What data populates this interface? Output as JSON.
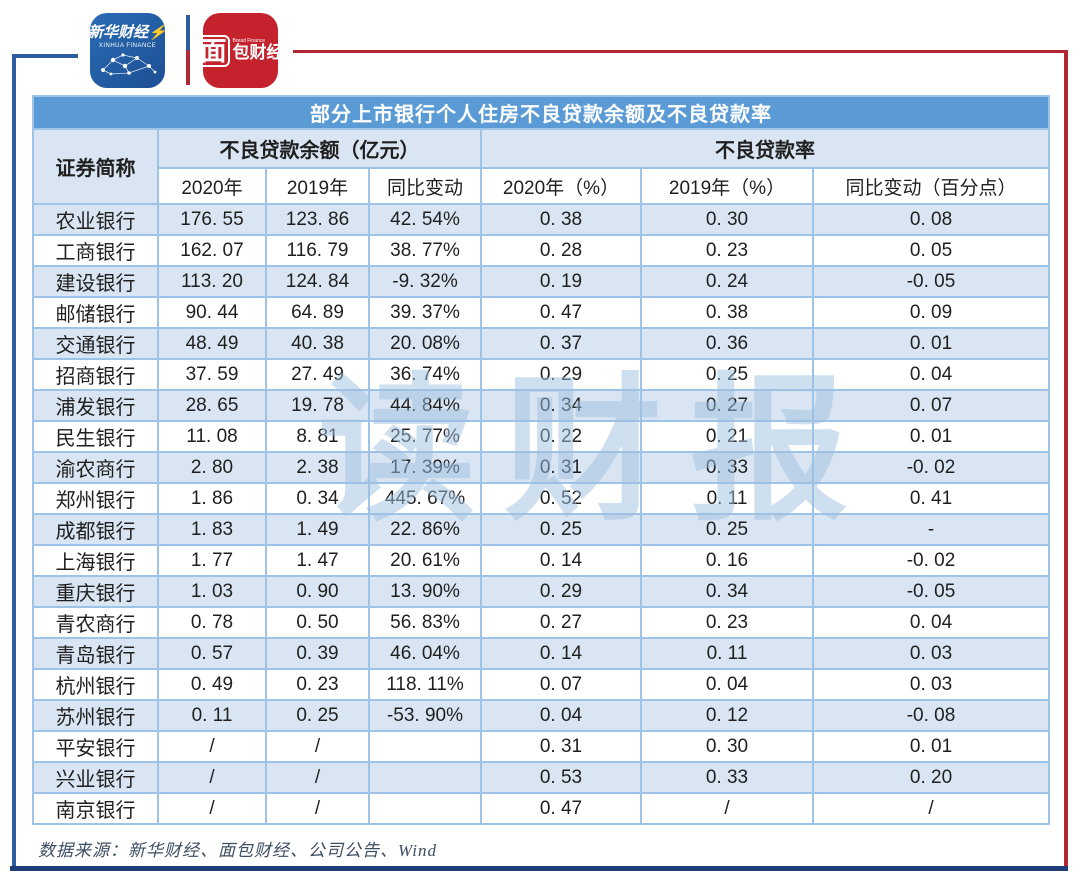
{
  "logos": {
    "xinhua": {
      "line1": "新华财经",
      "line2": "XINHUA FINANCE"
    },
    "mianbao": {
      "mian": "面",
      "sub": "Bread Finance",
      "caijing": "包财经"
    }
  },
  "table": {
    "title": "部分上市银行个人住房不良贷款余额及不良贷款率",
    "corner_header": "证券简称",
    "group_balance": "不良贷款余额（亿元）",
    "group_ratio": "不良贷款率",
    "subheaders": [
      "2020年",
      "2019年",
      "同比变动",
      "2020年（%）",
      "2019年（%）",
      "同比变动（百分点）"
    ],
    "rows": [
      {
        "cells": [
          "农业银行",
          "176. 55",
          "123. 86",
          "42. 54%",
          "0. 38",
          "0. 30",
          "0. 08"
        ]
      },
      {
        "cells": [
          "工商银行",
          "162. 07",
          "116. 79",
          "38. 77%",
          "0. 28",
          "0. 23",
          "0. 05"
        ]
      },
      {
        "cells": [
          "建设银行",
          "113. 20",
          "124. 84",
          "-9. 32%",
          "0. 19",
          "0. 24",
          "-0. 05"
        ]
      },
      {
        "cells": [
          "邮储银行",
          "90. 44",
          "64. 89",
          "39. 37%",
          "0. 47",
          "0. 38",
          "0. 09"
        ]
      },
      {
        "cells": [
          "交通银行",
          "48. 49",
          "40. 38",
          "20. 08%",
          "0. 37",
          "0. 36",
          "0. 01"
        ]
      },
      {
        "cells": [
          "招商银行",
          "37. 59",
          "27. 49",
          "36. 74%",
          "0. 29",
          "0. 25",
          "0. 04"
        ]
      },
      {
        "cells": [
          "浦发银行",
          "28. 65",
          "19. 78",
          "44. 84%",
          "0. 34",
          "0. 27",
          "0. 07"
        ]
      },
      {
        "cells": [
          "民生银行",
          "11. 08",
          "8. 81",
          "25. 77%",
          "0. 22",
          "0. 21",
          "0. 01"
        ]
      },
      {
        "cells": [
          "渝农商行",
          "2. 80",
          "2. 38",
          "17. 39%",
          "0. 31",
          "0. 33",
          "-0. 02"
        ]
      },
      {
        "cells": [
          "郑州银行",
          "1. 86",
          "0. 34",
          "445. 67%",
          "0. 52",
          "0. 11",
          "0. 41"
        ]
      },
      {
        "cells": [
          "成都银行",
          "1. 83",
          "1. 49",
          "22. 86%",
          "0. 25",
          "0. 25",
          "-"
        ]
      },
      {
        "cells": [
          "上海银行",
          "1. 77",
          "1. 47",
          "20. 61%",
          "0. 14",
          "0. 16",
          "-0. 02"
        ]
      },
      {
        "cells": [
          "重庆银行",
          "1. 03",
          "0. 90",
          "13. 90%",
          "0. 29",
          "0. 34",
          "-0. 05"
        ]
      },
      {
        "cells": [
          "青农商行",
          "0. 78",
          "0. 50",
          "56. 83%",
          "0. 27",
          "0. 23",
          "0. 04"
        ]
      },
      {
        "cells": [
          "青岛银行",
          "0. 57",
          "0. 39",
          "46. 04%",
          "0. 14",
          "0. 11",
          "0. 03"
        ]
      },
      {
        "cells": [
          "杭州银行",
          "0. 49",
          "0. 23",
          "118. 11%",
          "0. 07",
          "0. 04",
          "0. 03"
        ]
      },
      {
        "cells": [
          "苏州银行",
          "0. 11",
          "0. 25",
          "-53. 90%",
          "0. 04",
          "0. 12",
          "-0. 08"
        ]
      },
      {
        "cells": [
          "平安银行",
          "/",
          "/",
          "",
          "0. 31",
          "0. 30",
          "0. 01"
        ]
      },
      {
        "cells": [
          "兴业银行",
          "/",
          "/",
          "",
          "0. 53",
          "0. 33",
          "0. 20"
        ]
      },
      {
        "cells": [
          "南京银行",
          "/",
          "/",
          "",
          "0. 47",
          "/",
          "/"
        ]
      }
    ]
  },
  "watermark": "读财报",
  "footer": {
    "source": "数据来源：新华财经、面包财经、公司公告、Wind"
  },
  "colors": {
    "title_bar": "#5b9bd5",
    "band_row": "#d9e5f2",
    "cell_border": "#9dc3e6",
    "frame_blue": "#2d5d9e",
    "frame_red": "#b02832",
    "bottom_line": "#1f3d78",
    "watermark": "#9fc0e2"
  },
  "chart_data": {
    "type": "table",
    "title": "部分上市银行个人住房不良贷款余额及不良贷款率",
    "column_groups": [
      "证券简称",
      "不良贷款余额（亿元）",
      "不良贷款率"
    ],
    "columns": [
      "证券简称",
      "不良贷款余额2020年(亿元)",
      "不良贷款余额2019年(亿元)",
      "余额同比变动",
      "不良贷款率2020年(%)",
      "不良贷款率2019年(%)",
      "不良贷款率同比变动(百分点)"
    ],
    "rows": [
      [
        "农业银行",
        176.55,
        123.86,
        "42.54%",
        0.38,
        0.3,
        0.08
      ],
      [
        "工商银行",
        162.07,
        116.79,
        "38.77%",
        0.28,
        0.23,
        0.05
      ],
      [
        "建设银行",
        113.2,
        124.84,
        "-9.32%",
        0.19,
        0.24,
        -0.05
      ],
      [
        "邮储银行",
        90.44,
        64.89,
        "39.37%",
        0.47,
        0.38,
        0.09
      ],
      [
        "交通银行",
        48.49,
        40.38,
        "20.08%",
        0.37,
        0.36,
        0.01
      ],
      [
        "招商银行",
        37.59,
        27.49,
        "36.74%",
        0.29,
        0.25,
        0.04
      ],
      [
        "浦发银行",
        28.65,
        19.78,
        "44.84%",
        0.34,
        0.27,
        0.07
      ],
      [
        "民生银行",
        11.08,
        8.81,
        "25.77%",
        0.22,
        0.21,
        0.01
      ],
      [
        "渝农商行",
        2.8,
        2.38,
        "17.39%",
        0.31,
        0.33,
        -0.02
      ],
      [
        "郑州银行",
        1.86,
        0.34,
        "445.67%",
        0.52,
        0.11,
        0.41
      ],
      [
        "成都银行",
        1.83,
        1.49,
        "22.86%",
        0.25,
        0.25,
        null
      ],
      [
        "上海银行",
        1.77,
        1.47,
        "20.61%",
        0.14,
        0.16,
        -0.02
      ],
      [
        "重庆银行",
        1.03,
        0.9,
        "13.90%",
        0.29,
        0.34,
        -0.05
      ],
      [
        "青农商行",
        0.78,
        0.5,
        "56.83%",
        0.27,
        0.23,
        0.04
      ],
      [
        "青岛银行",
        0.57,
        0.39,
        "46.04%",
        0.14,
        0.11,
        0.03
      ],
      [
        "杭州银行",
        0.49,
        0.23,
        "118.11%",
        0.07,
        0.04,
        0.03
      ],
      [
        "苏州银行",
        0.11,
        0.25,
        "-53.90%",
        0.04,
        0.12,
        -0.08
      ],
      [
        "平安银行",
        null,
        null,
        null,
        0.31,
        0.3,
        0.01
      ],
      [
        "兴业银行",
        null,
        null,
        null,
        0.53,
        0.33,
        0.2
      ],
      [
        "南京银行",
        null,
        null,
        null,
        0.47,
        null,
        null
      ]
    ],
    "source": "数据来源：新华财经、面包财经、公司公告、Wind"
  }
}
